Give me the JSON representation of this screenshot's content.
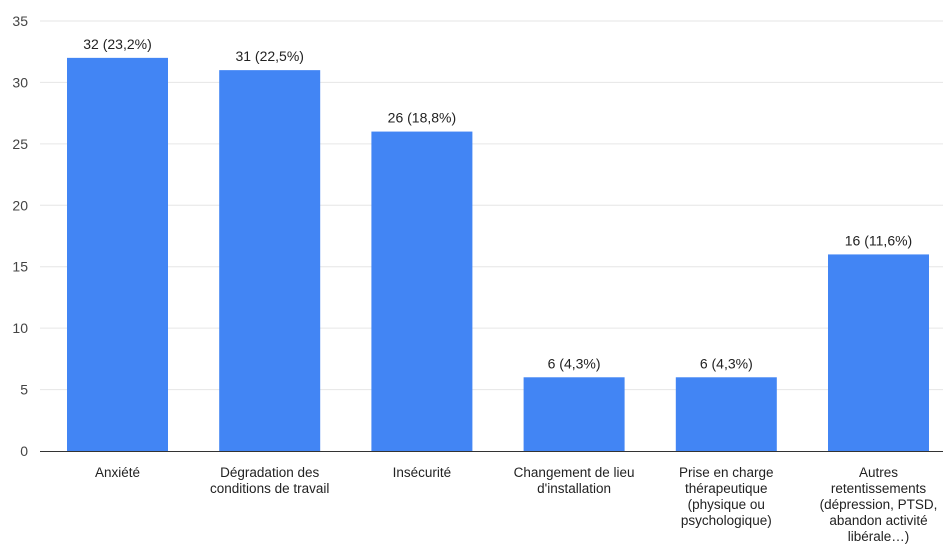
{
  "chart_data": {
    "type": "bar",
    "categories": [
      [
        "Anxiété"
      ],
      [
        "Dégradation des",
        "conditions de travail"
      ],
      [
        "Insécurité"
      ],
      [
        "Changement de lieu",
        "d'installation"
      ],
      [
        "Prise en charge",
        "thérapeutique",
        "(physique ou",
        "psychologique)"
      ],
      [
        "Autres",
        "retentissements",
        "(dépression, PTSD,",
        "abandon activité",
        "libérale…)"
      ]
    ],
    "values": [
      32,
      31,
      26,
      6,
      6,
      16
    ],
    "data_labels": [
      "32 (23,2%)",
      "31 (22,5%)",
      "26 (18,8%)",
      "6 (4,3%)",
      "6 (4,3%)",
      "16 (11,6%)"
    ],
    "title": "",
    "xlabel": "",
    "ylabel": "",
    "ylim": [
      0,
      35
    ],
    "yticks": [
      0,
      5,
      10,
      15,
      20,
      25,
      30,
      35
    ],
    "grid": true,
    "bar_color": "#4285f4"
  }
}
